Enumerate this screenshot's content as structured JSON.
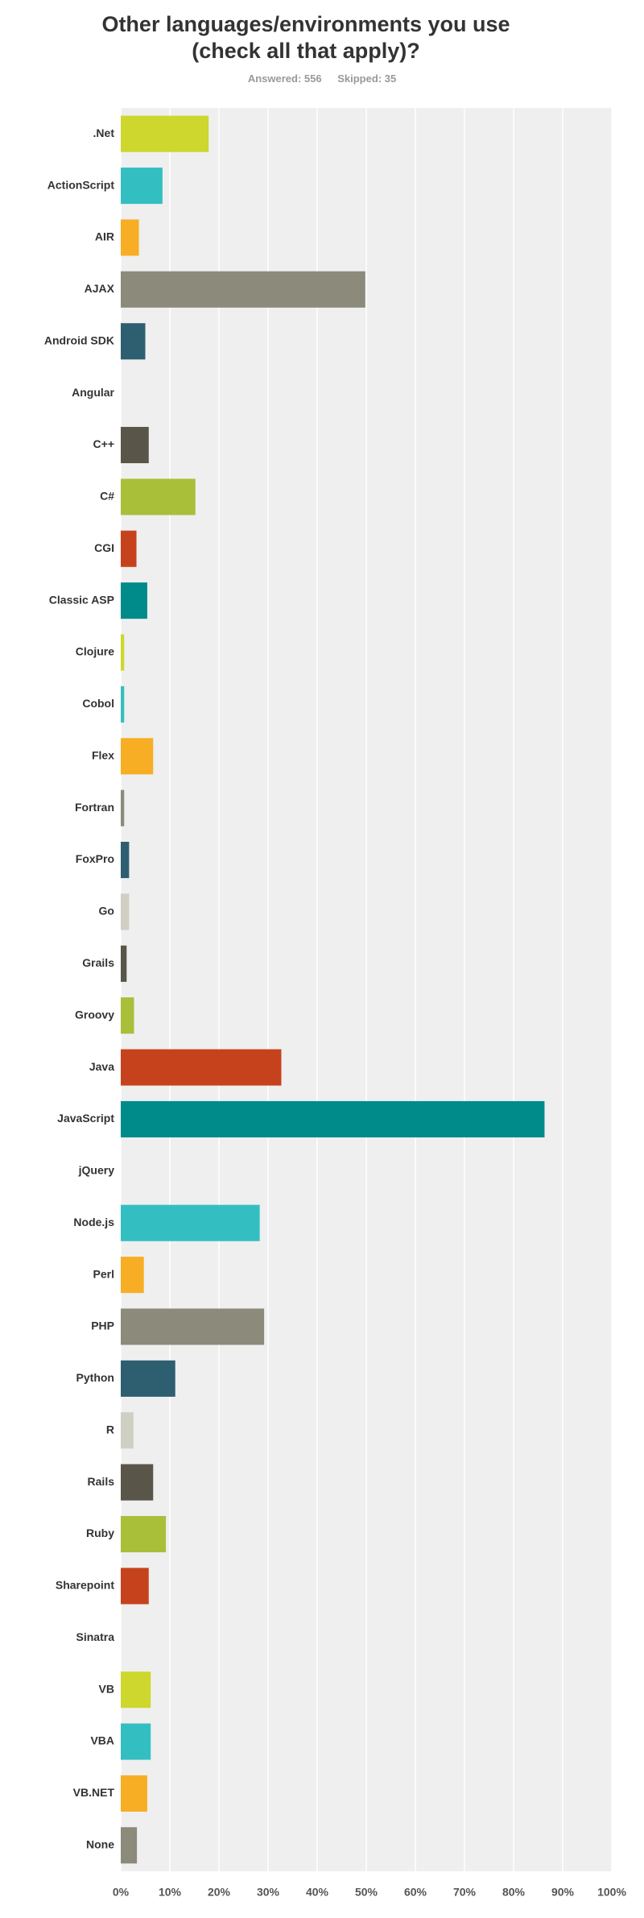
{
  "chart_data": {
    "type": "bar",
    "orientation": "horizontal",
    "title": "Other languages/environments you use (check all that apply)?",
    "answered": "Answered: 556",
    "skipped": "Skipped: 35",
    "categories": [
      ".Net",
      "ActionScript",
      "AIR",
      "AJAX",
      "Android SDK",
      "Angular",
      "C++",
      "C#",
      "CGI",
      "Classic ASP",
      "Clojure",
      "Cobol",
      "Flex",
      "Fortran",
      "FoxPro",
      "Go",
      "Grails",
      "Groovy",
      "Java",
      "JavaScript",
      "jQuery",
      "Node.js",
      "Perl",
      "PHP",
      "Python",
      "R",
      "Rails",
      "Ruby",
      "Sharepoint",
      "Sinatra",
      "VB",
      "VBA",
      "VB.NET",
      "None"
    ],
    "values": [
      17.9,
      8.5,
      3.7,
      49.8,
      5,
      0,
      5.7,
      15.2,
      3.2,
      5.4,
      0.7,
      0.7,
      6.6,
      0.7,
      1.7,
      1.7,
      1.2,
      2.7,
      32.7,
      86.3,
      0,
      28.3,
      4.7,
      29.2,
      11.1,
      2.6,
      6.6,
      9.2,
      5.7,
      0,
      6.1,
      6.1,
      5.4,
      3.3
    ],
    "colors": [
      "#cdd72d",
      "#33bfc1",
      "#f8ae24",
      "#8c8b7b",
      "#2e5f70",
      "#d0cfc3",
      "#595649",
      "#a9bf3a",
      "#c6421d",
      "#008b8b",
      "#cdd72d",
      "#33bfc1",
      "#f8ae24",
      "#8c8b7b",
      "#2e5f70",
      "#d0cfc3",
      "#595649",
      "#a9bf3a",
      "#c6421d",
      "#008b8b",
      "#cdd72d",
      "#33bfc1",
      "#f8ae24",
      "#8c8b7b",
      "#2e5f70",
      "#d0cfc3",
      "#595649",
      "#a9bf3a",
      "#c6421d",
      "#008b8b",
      "#cdd72d",
      "#33bfc1",
      "#f8ae24",
      "#8c8b7b"
    ],
    "xlim": [
      0,
      100
    ],
    "xticks": [
      {
        "value": 0,
        "label": "0%"
      },
      {
        "value": 10,
        "label": "10%"
      },
      {
        "value": 20,
        "label": "20%"
      },
      {
        "value": 30,
        "label": "30%"
      },
      {
        "value": 40,
        "label": "40%"
      },
      {
        "value": 50,
        "label": "50%"
      },
      {
        "value": 60,
        "label": "60%"
      },
      {
        "value": 70,
        "label": "70%"
      },
      {
        "value": 80,
        "label": "80%"
      },
      {
        "value": 90,
        "label": "90%"
      },
      {
        "value": 100,
        "label": "100%"
      }
    ],
    "grid": true
  }
}
